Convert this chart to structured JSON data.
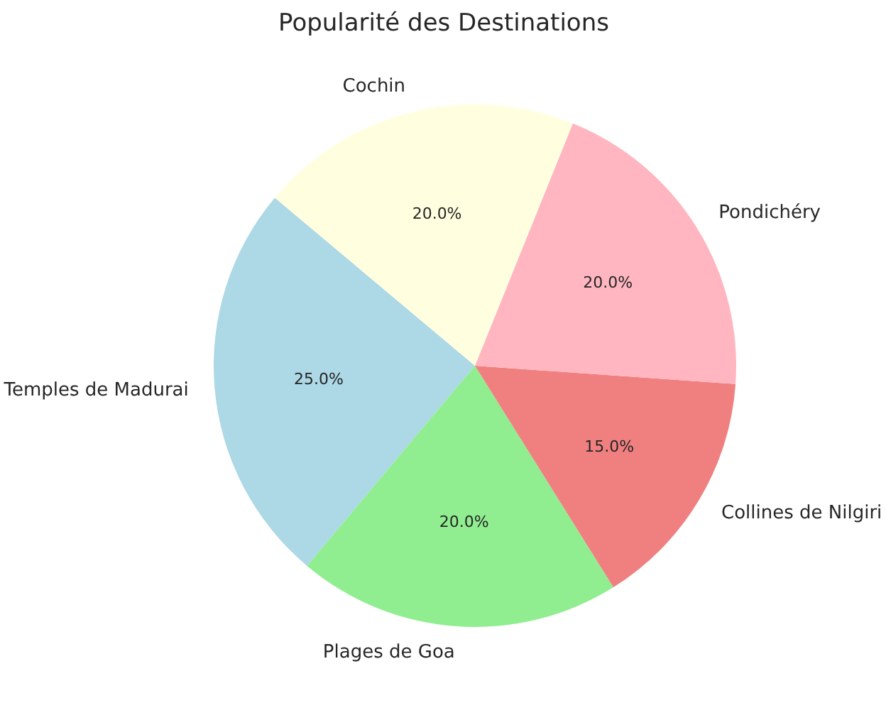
{
  "chart_data": {
    "type": "pie",
    "title": "Popularité des Destinations",
    "categories": [
      "Temples de Madurai",
      "Plages de Goa",
      "Collines de Nilgiri",
      "Pondichéry",
      "Cochin"
    ],
    "values": [
      25,
      20,
      15,
      20,
      20
    ],
    "colors": [
      "#add8e6",
      "#90ee90",
      "#f08080",
      "#ffb6c1",
      "#ffffe0"
    ],
    "value_labels": [
      "25.0%",
      "20.0%",
      "15.0%",
      "20.0%",
      "20.0%"
    ]
  }
}
